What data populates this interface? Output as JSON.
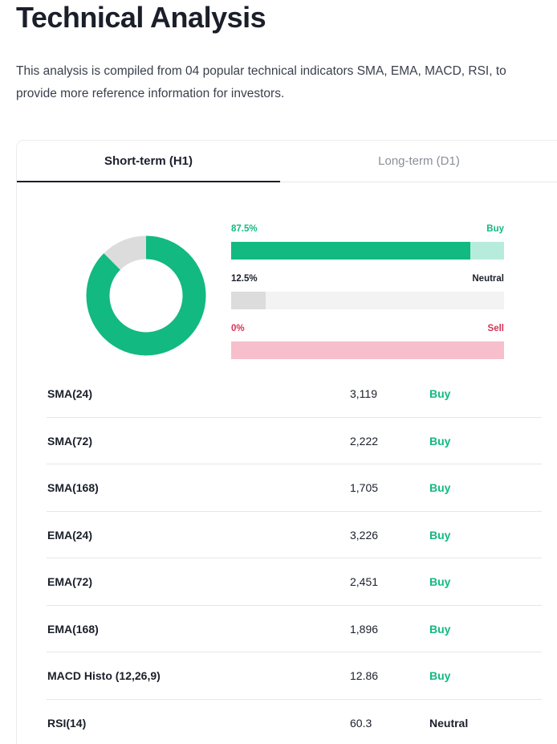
{
  "page": {
    "title": "Technical Analysis",
    "description": "This analysis is compiled from 04 popular technical indicators SMA, EMA, MACD, RSI, to provide more reference information for investors."
  },
  "tabs": [
    {
      "label": "Short-term (H1)",
      "active": true
    },
    {
      "label": "Long-term (D1)",
      "active": false
    }
  ],
  "colors": {
    "buy": "#12b981",
    "buy_track": "#b7ecdc",
    "neutral": "#1b1f2a",
    "neutral_fill": "#dcdcdc",
    "neutral_track": "#f3f3f4",
    "sell": "#d63355",
    "sell_track": "#f6bfcb"
  },
  "summary": {
    "buy": {
      "pct": "87.5%",
      "label": "Buy",
      "fraction": 0.875
    },
    "neutral": {
      "pct": "12.5%",
      "label": "Neutral",
      "fraction": 0.125
    },
    "sell": {
      "pct": "0%",
      "label": "Sell",
      "fraction": 0
    }
  },
  "indicators": [
    {
      "name": "SMA(24)",
      "value": "3,119",
      "signal": "Buy"
    },
    {
      "name": "SMA(72)",
      "value": "2,222",
      "signal": "Buy"
    },
    {
      "name": "SMA(168)",
      "value": "1,705",
      "signal": "Buy"
    },
    {
      "name": "EMA(24)",
      "value": "3,226",
      "signal": "Buy"
    },
    {
      "name": "EMA(72)",
      "value": "2,451",
      "signal": "Buy"
    },
    {
      "name": "EMA(168)",
      "value": "1,896",
      "signal": "Buy"
    },
    {
      "name": "MACD Histo (12,26,9)",
      "value": "12.86",
      "signal": "Buy"
    },
    {
      "name": "RSI(14)",
      "value": "60.3",
      "signal": "Neutral"
    }
  ]
}
